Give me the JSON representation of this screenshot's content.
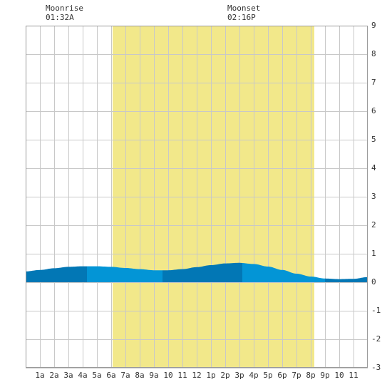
{
  "chart_data": {
    "type": "area",
    "title": "",
    "xlabel": "",
    "ylabel": "",
    "x_ticks": [
      "1a",
      "2a",
      "3a",
      "4a",
      "5a",
      "6a",
      "7a",
      "8a",
      "9a",
      "10",
      "11",
      "12",
      "1p",
      "2p",
      "3p",
      "4p",
      "5p",
      "6p",
      "7p",
      "8p",
      "9p",
      "10",
      "11"
    ],
    "xlim": [
      0,
      24
    ],
    "ylim": [
      -3,
      9
    ],
    "y_ticks": [
      -3,
      -2,
      -1,
      0,
      1,
      2,
      3,
      4,
      5,
      6,
      7,
      8,
      9
    ],
    "grid": true,
    "daylight": {
      "start_hour": 6.1,
      "end_hour": 20.25,
      "color": "#f2e88a"
    },
    "moon": {
      "rise": {
        "label": "Moonrise",
        "time": "01:32A",
        "hour": 1.53
      },
      "set": {
        "label": "Moonset",
        "time": "02:16P",
        "hour": 14.27
      }
    },
    "tide": {
      "x": [
        0,
        1,
        2,
        3,
        4,
        5,
        6,
        7,
        8,
        9,
        10,
        11,
        12,
        13,
        14,
        15,
        16,
        17,
        18,
        19,
        20,
        21,
        22,
        23,
        24
      ],
      "y": [
        0.38,
        0.43,
        0.49,
        0.54,
        0.56,
        0.56,
        0.54,
        0.5,
        0.46,
        0.42,
        0.42,
        0.46,
        0.53,
        0.6,
        0.66,
        0.68,
        0.64,
        0.55,
        0.43,
        0.3,
        0.2,
        0.13,
        0.11,
        0.12,
        0.18
      ],
      "segments": [
        {
          "from": 0,
          "to": 4.3,
          "color": "#0277b5"
        },
        {
          "from": 4.3,
          "to": 9.6,
          "color": "#0395d6"
        },
        {
          "from": 9.6,
          "to": 15.2,
          "color": "#0277b5"
        },
        {
          "from": 15.2,
          "to": 21.0,
          "color": "#0395d6"
        },
        {
          "from": 21.0,
          "to": 24,
          "color": "#0277b5"
        }
      ]
    }
  }
}
